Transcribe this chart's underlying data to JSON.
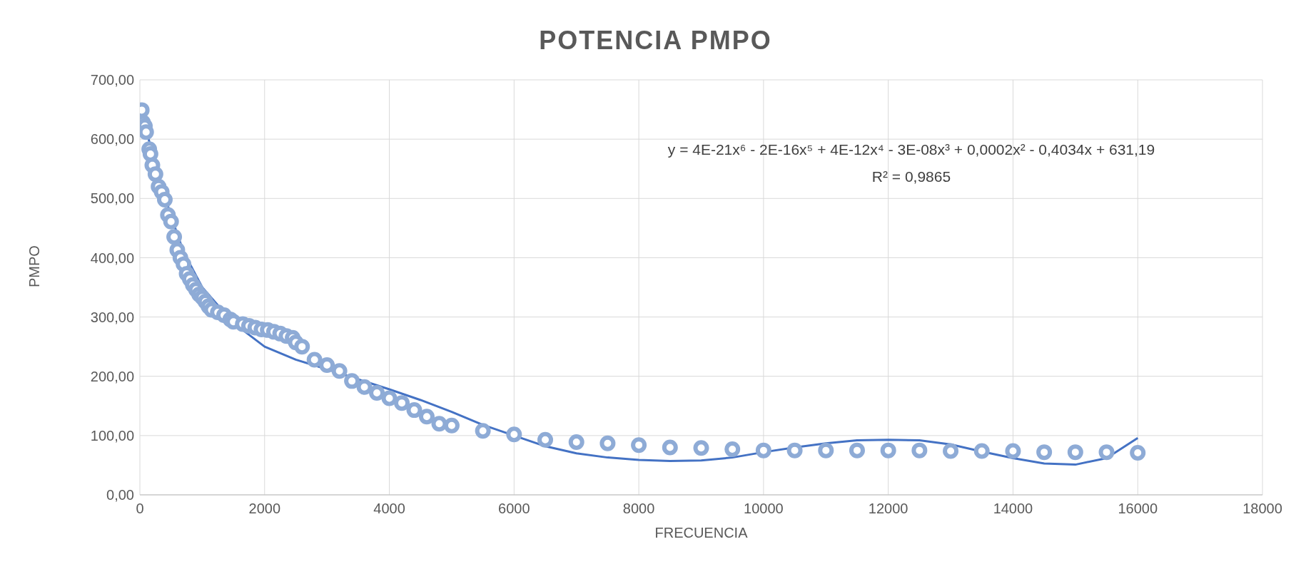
{
  "chart_data": {
    "type": "scatter",
    "title": "POTENCIA PMPO",
    "xlabel": "FRECUENCIA",
    "ylabel": "PMPO",
    "series": [
      {
        "color": "#8eabd6",
        "marker": "circle",
        "x": [
          30,
          50,
          80,
          100,
          150,
          170,
          200,
          250,
          300,
          350,
          400,
          450,
          500,
          550,
          600,
          650,
          700,
          750,
          800,
          850,
          900,
          950,
          1000,
          1050,
          1100,
          1150,
          1250,
          1350,
          1450,
          1500,
          1650,
          1750,
          1850,
          1950,
          2050,
          2150,
          2250,
          2350,
          2450,
          2500,
          2600,
          2800,
          3000,
          3200,
          3400,
          3600,
          3800,
          4000,
          4200,
          4400,
          4600,
          4800,
          5000,
          5500,
          6000,
          6500,
          7000,
          7500,
          8000,
          8500,
          9000,
          9500,
          10000,
          10500,
          11000,
          11500,
          12000,
          12500,
          13000,
          13500,
          14000,
          14500,
          15000,
          15500,
          16000
        ],
        "values": [
          649,
          628,
          622,
          612,
          583,
          575,
          556,
          541,
          520,
          511,
          498,
          472,
          461,
          435,
          413,
          400,
          389,
          373,
          364,
          354,
          346,
          338,
          333,
          326,
          318,
          312,
          308,
          303,
          296,
          292,
          288,
          285,
          282,
          279,
          278,
          275,
          272,
          268,
          265,
          257,
          250,
          228,
          219,
          209,
          192,
          182,
          172,
          163,
          155,
          143,
          132,
          120,
          117,
          108,
          102,
          93,
          89,
          87,
          84,
          80,
          79,
          77,
          75,
          75,
          75,
          75,
          75,
          75,
          74,
          74,
          74,
          72,
          72,
          72,
          71
        ]
      },
      {
        "type": "line",
        "color": "#4472c4",
        "marker": "none",
        "line_style": "solid",
        "x": [
          50,
          100,
          300,
          500,
          700,
          1000,
          1500,
          2000,
          2500,
          3000,
          3500,
          4000,
          4500,
          5000,
          5500,
          6000,
          6500,
          7000,
          7500,
          8000,
          8500,
          9000,
          9500,
          10000,
          10500,
          11000,
          11500,
          12000,
          12500,
          13000,
          13500,
          14000,
          14500,
          15000,
          15500,
          16000
        ],
        "values": [
          625,
          615,
          540,
          470,
          410,
          350,
          290,
          250,
          228,
          212,
          195,
          178,
          160,
          140,
          118,
          100,
          82,
          70,
          63,
          59,
          57,
          58,
          63,
          72,
          80,
          87,
          92,
          93,
          92,
          85,
          73,
          62,
          53,
          51,
          62,
          96
        ]
      }
    ],
    "xlim": [
      0,
      18000
    ],
    "xticks": [
      0,
      2000,
      4000,
      6000,
      8000,
      10000,
      12000,
      14000,
      16000,
      18000
    ],
    "ylim": [
      0,
      700
    ],
    "yticks": [
      {
        "value": 0,
        "label": "0,00"
      },
      {
        "value": 100,
        "label": "100,00"
      },
      {
        "value": 200,
        "label": "200,00"
      },
      {
        "value": 300,
        "label": "300,00"
      },
      {
        "value": 400,
        "label": "400,00"
      },
      {
        "value": 500,
        "label": "500,00"
      },
      {
        "value": 600,
        "label": "600,00"
      },
      {
        "value": 700,
        "label": "700,00"
      }
    ],
    "grid": true,
    "annotations": [
      "y = 4E-21x⁶ - 2E-16x⁵ + 4E-12x⁴ - 3E-08x³ + 0,0002x² - 0,4034x + 631,19",
      "R² = 0,9865"
    ]
  }
}
